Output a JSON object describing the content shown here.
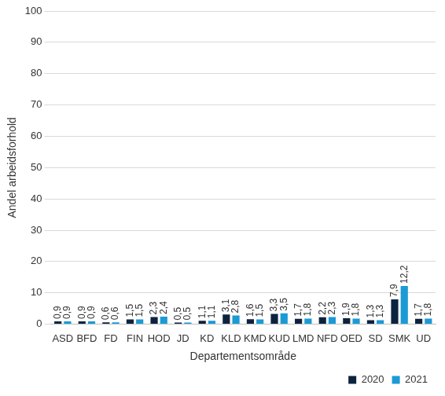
{
  "chart_data": {
    "type": "bar",
    "categories": [
      "ASD",
      "BFD",
      "FD",
      "FIN",
      "HOD",
      "JD",
      "KD",
      "KLD",
      "KMD",
      "KUD",
      "LMD",
      "NFD",
      "OED",
      "SD",
      "SMK",
      "UD"
    ],
    "series": [
      {
        "name": "2020",
        "color": "#0c2340",
        "values": [
          0.9,
          0.9,
          0.6,
          1.5,
          2.3,
          0.5,
          1.1,
          3.1,
          1.6,
          3.3,
          1.7,
          2.2,
          1.9,
          1.3,
          7.9,
          1.7
        ],
        "value_labels": [
          "0,9",
          "0,9",
          "0,6",
          "1,5",
          "2,3",
          "0,5",
          "1,1",
          "3,1",
          "1,6",
          "3,3",
          "1,7",
          "2,2",
          "1,9",
          "1,3",
          "7,9",
          "1,7"
        ]
      },
      {
        "name": "2021",
        "color": "#1b9ad6",
        "values": [
          0.9,
          0.9,
          0.6,
          1.5,
          2.4,
          0.5,
          1.1,
          2.8,
          1.5,
          3.5,
          1.8,
          2.3,
          1.8,
          1.3,
          12.2,
          1.8
        ],
        "value_labels": [
          "0,9",
          "0,9",
          "0,6",
          "1,5",
          "2,4",
          "0,5",
          "1,1",
          "2,8",
          "1,5",
          "3,5",
          "1,8",
          "2,3",
          "1,8",
          "1,3",
          "12,2",
          "1,8"
        ]
      }
    ],
    "x_label": "Departementsområde",
    "y_label": "Andel arbeidsforhold",
    "ylim": [
      0,
      100
    ],
    "yticks": [
      0,
      10,
      20,
      30,
      40,
      50,
      60,
      70,
      80,
      90,
      100
    ],
    "grid": true,
    "legend": "bottom right",
    "data_labels": true
  }
}
